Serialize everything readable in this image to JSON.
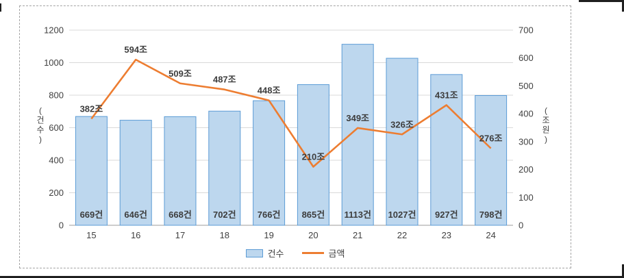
{
  "page": {
    "background": "#ffffff"
  },
  "chart_data": {
    "type": "combo-bar-line",
    "categories": [
      "15",
      "16",
      "17",
      "18",
      "19",
      "20",
      "21",
      "22",
      "23",
      "24"
    ],
    "series": [
      {
        "name": "건수",
        "type": "bar",
        "axis": "left",
        "values": [
          669,
          646,
          668,
          702,
          766,
          865,
          1113,
          1027,
          927,
          798
        ],
        "data_labels": [
          "669건",
          "646건",
          "668건",
          "702건",
          "766건",
          "865건",
          "1113건",
          "1027건",
          "927건",
          "798건"
        ],
        "fill": "#bdd7ee",
        "stroke": "#5b9bd5"
      },
      {
        "name": "금액",
        "type": "line",
        "axis": "right",
        "values": [
          382,
          594,
          509,
          487,
          448,
          210,
          349,
          326,
          431,
          276
        ],
        "data_labels": [
          "382조",
          "594조",
          "509조",
          "487조",
          "448조",
          "210조",
          "349조",
          "326조",
          "431조",
          "276조"
        ],
        "stroke": "#ed7d31"
      }
    ],
    "left_axis": {
      "title": "(건수)",
      "min": 0,
      "max": 1200,
      "ticks": [
        0,
        200,
        400,
        600,
        800,
        1000,
        1200
      ]
    },
    "right_axis": {
      "title": "(조원)",
      "min": 0,
      "max": 700,
      "ticks": [
        0,
        100,
        200,
        300,
        400,
        500,
        600,
        700
      ]
    },
    "legend": [
      {
        "label": "건수",
        "marker": "bar"
      },
      {
        "label": "금액",
        "marker": "line"
      }
    ],
    "grid": true,
    "legend_position": "bottom",
    "colors": {
      "gridline": "#d9d9d9",
      "axis_line": "#9b9b9b",
      "text": "#404040"
    }
  }
}
